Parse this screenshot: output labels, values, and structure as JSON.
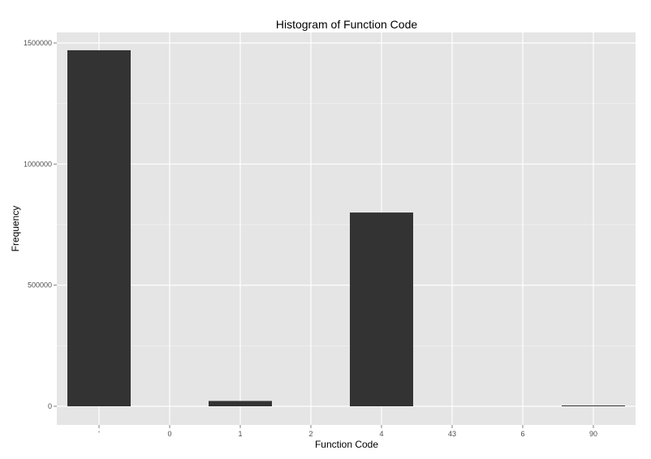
{
  "chart_data": {
    "type": "bar",
    "title": "Histogram of Function Code",
    "xlabel": "Function Code",
    "ylabel": "Frequency",
    "categories": [
      "'",
      "0",
      "1",
      "2",
      "4",
      "43",
      "6",
      "90"
    ],
    "values": [
      1470000,
      0,
      22000,
      0,
      800000,
      0,
      0,
      1500
    ],
    "ylim": [
      0,
      1500000
    ],
    "yticks": [
      0,
      500000,
      1000000,
      1500000
    ],
    "ytick_labels": [
      "0",
      "500000",
      "1000000",
      "1500000"
    ],
    "grid": true,
    "legend": "none",
    "colors": {
      "bar": "#333333",
      "panel": "#e5e5e5",
      "grid_major": "#ffffff",
      "grid_minor": "#f2f2f2",
      "tick_text": "#4d4d4d"
    }
  }
}
